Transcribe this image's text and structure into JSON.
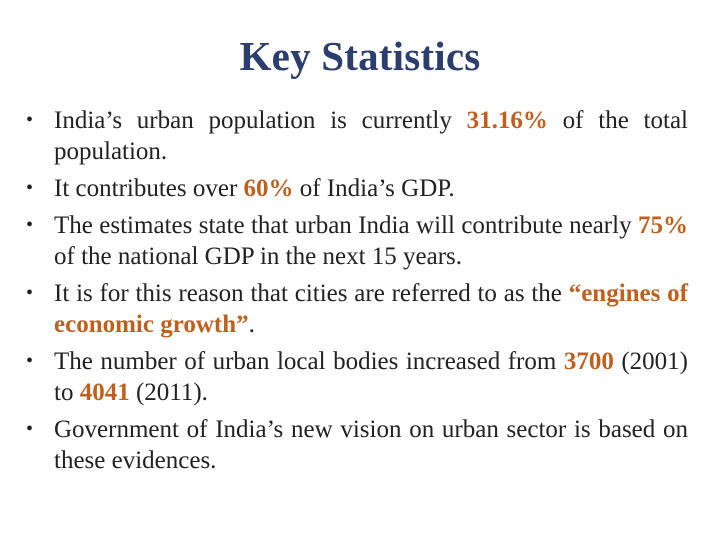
{
  "title": "Key Statistics",
  "bullets": [
    {
      "parts": [
        {
          "text": "India’s urban population is currently ",
          "hl": false
        },
        {
          "text": "31.16%",
          "hl": true
        },
        {
          "text": " of the total population.",
          "hl": false
        }
      ]
    },
    {
      "parts": [
        {
          "text": "It contributes over ",
          "hl": false
        },
        {
          "text": "60%",
          "hl": true
        },
        {
          "text": " of India’s GDP.",
          "hl": false
        }
      ]
    },
    {
      "parts": [
        {
          "text": "The estimates state that urban India will contribute nearly ",
          "hl": false
        },
        {
          "text": "75%",
          "hl": true
        },
        {
          "text": " of the national GDP in the next 15 years.",
          "hl": false
        }
      ]
    },
    {
      "parts": [
        {
          "text": "It is for this reason that cities are referred to as the ",
          "hl": false
        },
        {
          "text": "“engines of economic growth”",
          "hl": true
        },
        {
          "text": ".",
          "hl": false
        }
      ]
    },
    {
      "parts": [
        {
          "text": "The number of urban local bodies increased from ",
          "hl": false
        },
        {
          "text": "3700",
          "hl": true
        },
        {
          "text": " (2001) to ",
          "hl": false
        },
        {
          "text": "4041",
          "hl": true
        },
        {
          "text": " (2011).",
          "hl": false
        }
      ]
    },
    {
      "parts": [
        {
          "text": "Government of India’s new vision on urban sector is based on these evidences.",
          "hl": false
        }
      ]
    }
  ],
  "bullet_glyph": "•",
  "colors": {
    "title": "#2c3e6e",
    "highlight": "#c0601e",
    "text": "#222222"
  }
}
